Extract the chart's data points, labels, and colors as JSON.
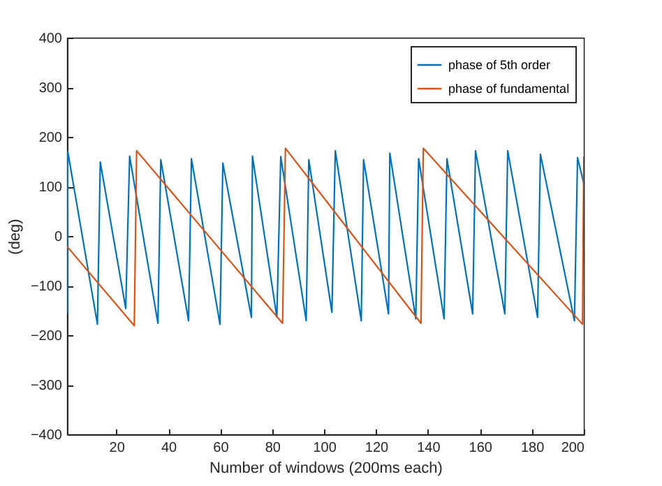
{
  "chart_data": {
    "type": "line",
    "xlabel": "Number of windows (200ms each)",
    "ylabel": "(deg)",
    "xlim": [
      1,
      200
    ],
    "xticks": [
      20,
      40,
      60,
      80,
      100,
      120,
      140,
      160,
      180,
      200
    ],
    "ylim": [
      -400,
      400
    ],
    "yticks": [
      -400,
      -300,
      -200,
      -100,
      0,
      100,
      200,
      300,
      400
    ],
    "grid": false,
    "legend": "top right",
    "line_style": "solid",
    "marker": "none",
    "series": [
      {
        "name": "phase of 5th order",
        "color": "#0072bd",
        "x": [
          1,
          1.3,
          12.7,
          13.8,
          23.6,
          25.1,
          36,
          37.1,
          47.8,
          48.9,
          59.9,
          61,
          72,
          72.4,
          81.8,
          83.3,
          93.1,
          94.1,
          103,
          104.3,
          114.3,
          115.2,
          124.8,
          125.3,
          135.3,
          136.4,
          146.2,
          147.3,
          157.2,
          158.3,
          169.6,
          170.7,
          182.2,
          183.3,
          196.4,
          197.6,
          200
        ],
        "values": [
          -156,
          170,
          -178,
          149,
          -146,
          161,
          -176,
          154,
          -171,
          156,
          -178,
          147,
          -164,
          161,
          -164,
          160,
          -171,
          154,
          -154,
          172,
          -171,
          154,
          -157,
          167,
          -167,
          156,
          -167,
          156,
          -157,
          172,
          -157,
          172,
          -164,
          165,
          -171,
          158,
          106
        ]
      },
      {
        "name": "phase of fundamental",
        "color": "#d95319",
        "x": [
          1,
          26.9,
          27.8,
          84,
          85.1,
          137.3,
          138.2,
          199.5,
          200
        ],
        "values": [
          -21,
          -181,
          172,
          -176,
          177,
          -176,
          177,
          -178,
          160
        ]
      }
    ]
  }
}
